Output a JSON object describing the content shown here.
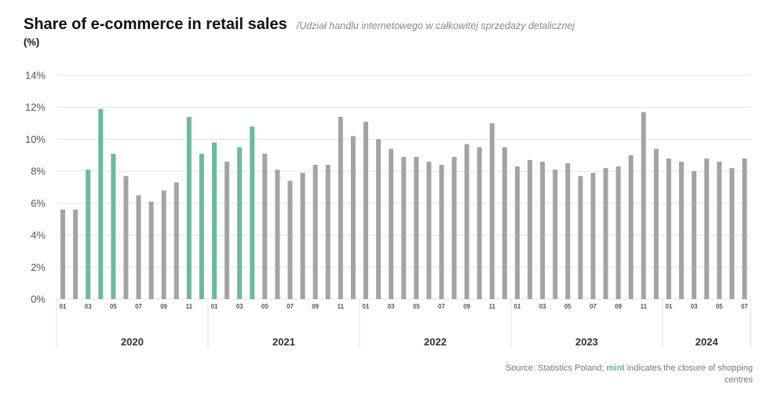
{
  "header": {
    "title": "Share of e-commerce in retail sales",
    "subtitle": "/Udział handlu internetowego w całkowitej sprzedaży detalicznej",
    "unit": "(%)"
  },
  "footer": {
    "source_prefix": "Source: Statistics Poland; ",
    "source_highlight": "mint",
    "source_suffix": " indicates the closure of shopping centres"
  },
  "colors": {
    "default_bar": "#a3a3a3",
    "closure_bar": "#6cba9c",
    "grid": "#e3e3e3",
    "axis_text": "#555555"
  },
  "chart_data": {
    "type": "bar",
    "title": "Share of e-commerce in retail sales",
    "ylabel": "(%)",
    "ylim": [
      0,
      14
    ],
    "yticks": [
      0,
      2,
      4,
      6,
      8,
      10,
      12,
      14
    ],
    "ytick_labels": [
      "0%",
      "2%",
      "4%",
      "6%",
      "8%",
      "10%",
      "12%",
      "14%"
    ],
    "grid": true,
    "years": [
      {
        "label": "2020",
        "months": 12
      },
      {
        "label": "2021",
        "months": 12
      },
      {
        "label": "2022",
        "months": 12
      },
      {
        "label": "2023",
        "months": 12
      },
      {
        "label": "2024",
        "months": 7
      }
    ],
    "month_tick_labels": [
      "01",
      "",
      "03",
      "",
      "05",
      "",
      "07",
      "",
      "09",
      "",
      "11",
      ""
    ],
    "values": [
      5.6,
      5.6,
      8.1,
      11.9,
      9.1,
      7.7,
      6.5,
      6.1,
      6.8,
      7.3,
      11.4,
      9.1,
      9.8,
      8.6,
      9.5,
      10.8,
      9.1,
      8.1,
      7.4,
      7.9,
      8.4,
      8.4,
      11.4,
      10.2,
      11.1,
      10.0,
      9.4,
      8.9,
      8.9,
      8.6,
      8.4,
      8.9,
      9.7,
      9.5,
      11.0,
      9.5,
      8.3,
      8.7,
      8.6,
      8.1,
      8.5,
      7.7,
      7.9,
      8.2,
      8.3,
      9.0,
      11.7,
      9.4,
      8.8,
      8.6,
      8.0,
      8.8,
      8.6,
      8.2,
      8.8
    ],
    "closure_flags": [
      0,
      0,
      1,
      1,
      1,
      0,
      0,
      0,
      0,
      0,
      1,
      1,
      1,
      0,
      1,
      1,
      0,
      0,
      0,
      0,
      0,
      0,
      0,
      0,
      0,
      0,
      0,
      0,
      0,
      0,
      0,
      0,
      0,
      0,
      0,
      0,
      0,
      0,
      0,
      0,
      0,
      0,
      0,
      0,
      0,
      0,
      0,
      0,
      0,
      0,
      0,
      0,
      0,
      0,
      0
    ]
  }
}
